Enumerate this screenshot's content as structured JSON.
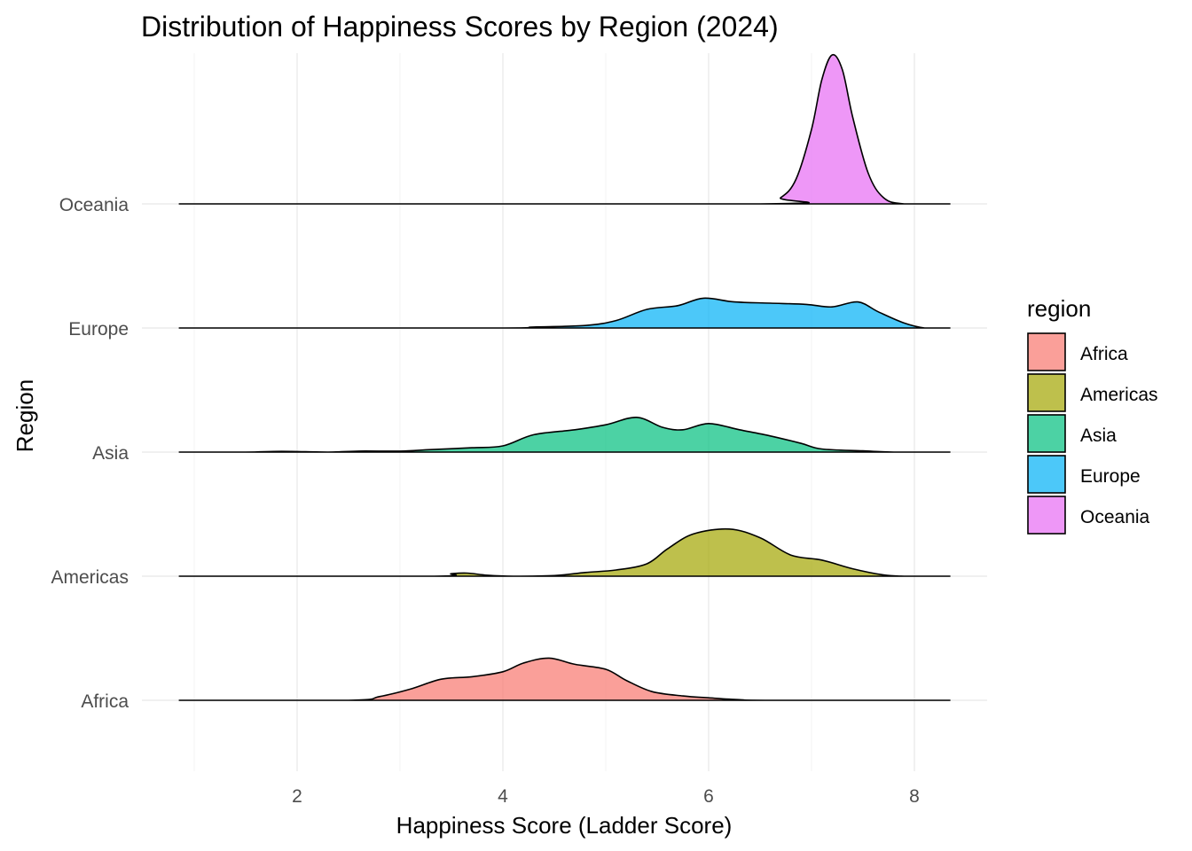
{
  "chart_data": {
    "type": "area",
    "subtype": "ridgeline-density",
    "title": "Distribution of Happiness Scores by Region (2024)",
    "xlabel": "Happiness Score (Ladder Score)",
    "ylabel": "Region",
    "xlim": [
      0.8,
      8.4
    ],
    "xticks": [
      2,
      4,
      6,
      8
    ],
    "grid": true,
    "legend_title": "region",
    "legend_position": "right",
    "x_range": [
      0.85,
      8.35
    ],
    "series": [
      {
        "name": "Africa",
        "color": "#F8766D",
        "points": [
          [
            2.5,
            0
          ],
          [
            2.8,
            0.03
          ],
          [
            3.1,
            0.09
          ],
          [
            3.4,
            0.17
          ],
          [
            3.7,
            0.19
          ],
          [
            4.0,
            0.23
          ],
          [
            4.2,
            0.3
          ],
          [
            4.45,
            0.34
          ],
          [
            4.7,
            0.29
          ],
          [
            5.0,
            0.25
          ],
          [
            5.2,
            0.16
          ],
          [
            5.45,
            0.07
          ],
          [
            5.75,
            0.035
          ],
          [
            6.0,
            0.02
          ],
          [
            6.3,
            0.005
          ],
          [
            6.6,
            0
          ]
        ]
      },
      {
        "name": "Americas",
        "color": "#A3A500",
        "points": [
          [
            3.3,
            0
          ],
          [
            3.5,
            0.02
          ],
          [
            3.65,
            0.025
          ],
          [
            3.85,
            0.008
          ],
          [
            4.1,
            0
          ],
          [
            4.5,
            0.005
          ],
          [
            4.8,
            0.03
          ],
          [
            5.1,
            0.05
          ],
          [
            5.4,
            0.1
          ],
          [
            5.6,
            0.22
          ],
          [
            5.85,
            0.34
          ],
          [
            6.2,
            0.38
          ],
          [
            6.5,
            0.31
          ],
          [
            6.8,
            0.17
          ],
          [
            7.1,
            0.13
          ],
          [
            7.4,
            0.06
          ],
          [
            7.7,
            0.01
          ],
          [
            7.9,
            0
          ]
        ]
      },
      {
        "name": "Asia",
        "color": "#00BF7D",
        "points": [
          [
            1.5,
            0
          ],
          [
            1.85,
            0.006
          ],
          [
            2.3,
            0
          ],
          [
            2.6,
            0.008
          ],
          [
            3.0,
            0.008
          ],
          [
            3.3,
            0.02
          ],
          [
            3.7,
            0.035
          ],
          [
            4.0,
            0.05
          ],
          [
            4.3,
            0.14
          ],
          [
            4.7,
            0.18
          ],
          [
            5.0,
            0.22
          ],
          [
            5.3,
            0.28
          ],
          [
            5.55,
            0.2
          ],
          [
            5.75,
            0.18
          ],
          [
            6.0,
            0.23
          ],
          [
            6.3,
            0.18
          ],
          [
            6.6,
            0.13
          ],
          [
            6.9,
            0.07
          ],
          [
            7.1,
            0.025
          ],
          [
            7.5,
            0.01
          ],
          [
            7.8,
            0
          ]
        ]
      },
      {
        "name": "Europe",
        "color": "#00B0F6",
        "points": [
          [
            3.9,
            0
          ],
          [
            4.3,
            0.008
          ],
          [
            4.8,
            0.02
          ],
          [
            5.1,
            0.06
          ],
          [
            5.4,
            0.15
          ],
          [
            5.7,
            0.18
          ],
          [
            5.95,
            0.24
          ],
          [
            6.25,
            0.21
          ],
          [
            6.6,
            0.2
          ],
          [
            6.95,
            0.19
          ],
          [
            7.2,
            0.17
          ],
          [
            7.45,
            0.21
          ],
          [
            7.65,
            0.13
          ],
          [
            7.9,
            0.04
          ],
          [
            8.1,
            0
          ]
        ]
      },
      {
        "name": "Oceania",
        "color": "#E76BF3",
        "points": [
          [
            6.5,
            0
          ],
          [
            6.7,
            0.05
          ],
          [
            6.85,
            0.2
          ],
          [
            7.0,
            0.6
          ],
          [
            7.1,
            1.0
          ],
          [
            7.2,
            1.2
          ],
          [
            7.3,
            1.08
          ],
          [
            7.4,
            0.7
          ],
          [
            7.55,
            0.25
          ],
          [
            7.7,
            0.05
          ],
          [
            7.9,
            0
          ]
        ]
      }
    ]
  }
}
